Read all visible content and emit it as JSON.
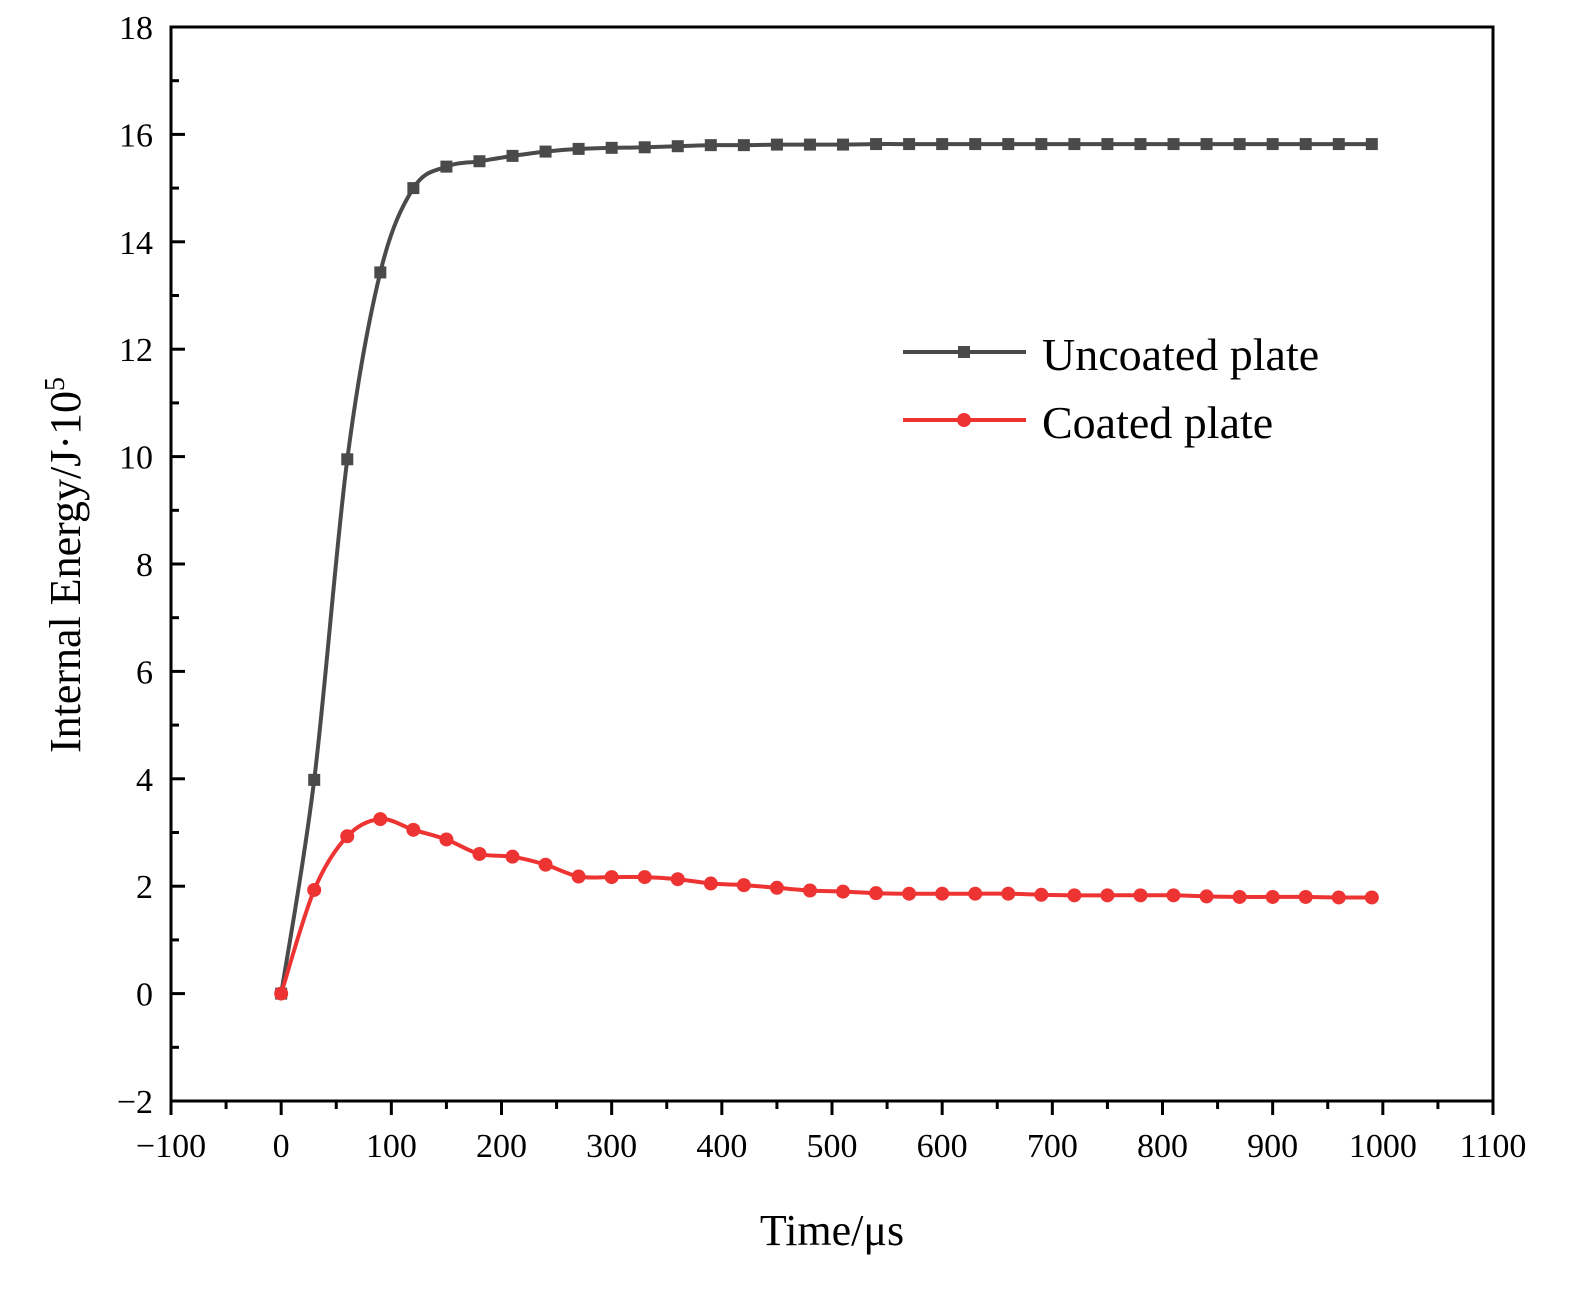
{
  "chart_data": {
    "type": "line",
    "title": "",
    "xlabel": "Time/μs",
    "ylabel": "Internal Energy/J·10",
    "ylabel_superscript": "5",
    "xlim": [
      -100,
      1100
    ],
    "ylim": [
      -2,
      18
    ],
    "xticks": [
      -100,
      0,
      100,
      200,
      300,
      400,
      500,
      600,
      700,
      800,
      900,
      1000,
      1100
    ],
    "xtick_labels": [
      "−100",
      "0",
      "100",
      "200",
      "300",
      "400",
      "500",
      "600",
      "700",
      "800",
      "900",
      "1000",
      "1100"
    ],
    "yticks": [
      -2,
      0,
      2,
      4,
      6,
      8,
      10,
      12,
      14,
      16,
      18
    ],
    "ytick_labels": [
      "−2",
      "0",
      "2",
      "4",
      "6",
      "8",
      "10",
      "12",
      "14",
      "16",
      "18"
    ],
    "legend_position": "top-right",
    "x": [
      0,
      30,
      60,
      90,
      120,
      150,
      180,
      210,
      240,
      270,
      300,
      330,
      360,
      390,
      420,
      450,
      480,
      510,
      540,
      570,
      600,
      630,
      660,
      690,
      720,
      750,
      780,
      810,
      840,
      870,
      900,
      930,
      960,
      990
    ],
    "series": [
      {
        "name": "Uncoated plate",
        "color": "#4a4a4a",
        "marker": "square",
        "values": [
          0.0,
          3.98,
          9.95,
          13.43,
          15.0,
          15.4,
          15.5,
          15.6,
          15.68,
          15.73,
          15.75,
          15.76,
          15.78,
          15.8,
          15.8,
          15.81,
          15.81,
          15.81,
          15.82,
          15.82,
          15.82,
          15.82,
          15.82,
          15.82,
          15.82,
          15.82,
          15.82,
          15.82,
          15.82,
          15.82,
          15.82,
          15.82,
          15.82,
          15.82
        ]
      },
      {
        "name": "Coated plate",
        "color": "#ee3333",
        "marker": "circle",
        "values": [
          0.0,
          1.93,
          2.93,
          3.25,
          3.05,
          2.87,
          2.6,
          2.55,
          2.4,
          2.18,
          2.17,
          2.17,
          2.13,
          2.05,
          2.02,
          1.97,
          1.92,
          1.9,
          1.87,
          1.86,
          1.86,
          1.86,
          1.86,
          1.84,
          1.83,
          1.83,
          1.83,
          1.83,
          1.81,
          1.8,
          1.8,
          1.8,
          1.79,
          1.79
        ]
      }
    ]
  }
}
